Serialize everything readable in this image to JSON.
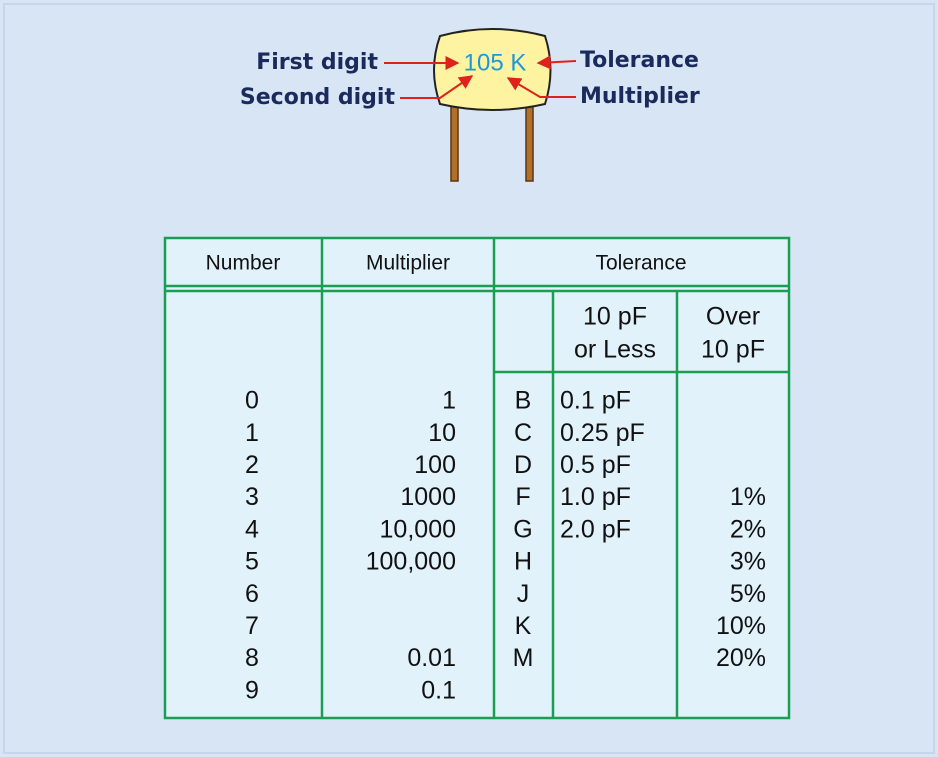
{
  "diagram": {
    "capacitor_code": "105 K",
    "labels": {
      "first_digit": "First digit",
      "second_digit": "Second digit",
      "tolerance": "Tolerance",
      "multiplier": "Multiplier"
    }
  },
  "table": {
    "headers": [
      "Number",
      "Multiplier",
      "Tolerance"
    ],
    "subheaders": [
      [
        "10 pF",
        "or Less"
      ],
      [
        "Over",
        "10 pF"
      ]
    ],
    "rows": [
      [
        "0",
        "1",
        "B",
        "0.1 pF",
        null
      ],
      [
        "1",
        "10",
        "C",
        "0.25 pF",
        null
      ],
      [
        "2",
        "100",
        "D",
        "0.5 pF",
        null
      ],
      [
        "3",
        "1000",
        "F",
        "1.0 pF",
        "1%"
      ],
      [
        "4",
        "10,000",
        "G",
        "2.0 pF",
        "2%"
      ],
      [
        "5",
        "100,000",
        "H",
        null,
        "3%"
      ],
      [
        "6",
        null,
        "J",
        null,
        "5%"
      ],
      [
        "7",
        null,
        "K",
        null,
        "10%"
      ],
      [
        "8",
        "0.01",
        "M",
        null,
        "20%"
      ],
      [
        "9",
        "0.1",
        null,
        null,
        null
      ]
    ]
  }
}
